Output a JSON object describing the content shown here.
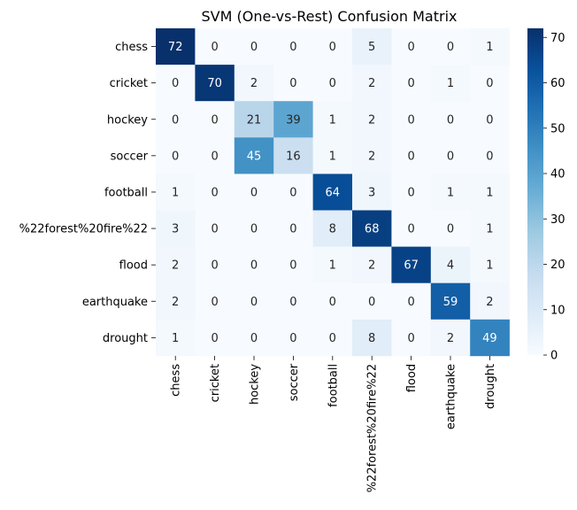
{
  "chart_data": {
    "type": "heatmap",
    "title": "SVM (One-vs-Rest) Confusion Matrix",
    "xlabel": "",
    "ylabel": "",
    "rows": [
      "chess",
      "cricket",
      "hockey",
      "soccer",
      "football",
      "%22forest%20fire%22",
      "flood",
      "earthquake",
      "drought"
    ],
    "columns": [
      "chess",
      "cricket",
      "hockey",
      "soccer",
      "football",
      "%22forest%20fire%22",
      "flood",
      "earthquake",
      "drought"
    ],
    "values": [
      [
        72,
        0,
        0,
        0,
        0,
        5,
        0,
        0,
        1
      ],
      [
        0,
        70,
        2,
        0,
        0,
        2,
        0,
        1,
        0
      ],
      [
        0,
        0,
        21,
        39,
        1,
        2,
        0,
        0,
        0
      ],
      [
        0,
        0,
        45,
        16,
        1,
        2,
        0,
        0,
        0
      ],
      [
        1,
        0,
        0,
        0,
        64,
        3,
        0,
        1,
        1
      ],
      [
        3,
        0,
        0,
        0,
        8,
        68,
        0,
        0,
        1
      ],
      [
        2,
        0,
        0,
        0,
        1,
        2,
        67,
        4,
        1
      ],
      [
        2,
        0,
        0,
        0,
        0,
        0,
        0,
        59,
        2
      ],
      [
        1,
        0,
        0,
        0,
        0,
        8,
        0,
        2,
        49
      ]
    ],
    "colormap": "Blues",
    "vmin": 0,
    "vmax": 72,
    "colorbar_ticks": [
      0,
      10,
      20,
      30,
      40,
      50,
      60,
      70
    ]
  }
}
